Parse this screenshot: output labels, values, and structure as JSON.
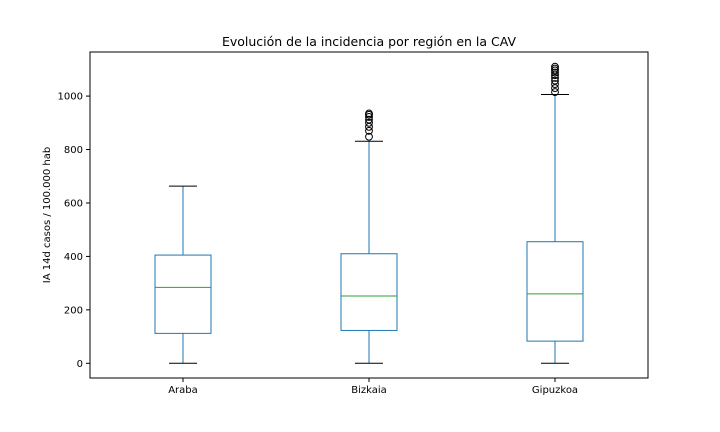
{
  "chart_data": {
    "type": "box",
    "title": "Evolución de la incidencia por región en la CAV",
    "xlabel": "",
    "ylabel": "IA 14d casos / 100.000 hab",
    "ylim": [
      -55,
      1165
    ],
    "yticks": [
      0,
      200,
      400,
      600,
      800,
      1000
    ],
    "grid": false,
    "legend": "none",
    "colors": {
      "box": "#1f77b4",
      "median": "#2ca02c",
      "whisker": "#1f77b4",
      "cap": "#000000",
      "flier": "#000000"
    },
    "categories": [
      "Araba",
      "Bizkaia",
      "Gipuzkoa"
    ],
    "boxes": [
      {
        "label": "Araba",
        "whislo": 0,
        "q1": 112,
        "med": 284,
        "q3": 405,
        "whishi": 663,
        "fliers": []
      },
      {
        "label": "Bizkaia",
        "whislo": 0,
        "q1": 123,
        "med": 252,
        "q3": 410,
        "whishi": 831,
        "fliers": [
          848,
          870,
          885,
          900,
          912,
          922,
          930,
          935
        ]
      },
      {
        "label": "Gipuzkoa",
        "whislo": 0,
        "q1": 83,
        "med": 260,
        "q3": 455,
        "whishi": 1006,
        "fliers": [
          1015,
          1030,
          1045,
          1058,
          1068,
          1078,
          1088,
          1096,
          1103,
          1110
        ]
      }
    ]
  }
}
